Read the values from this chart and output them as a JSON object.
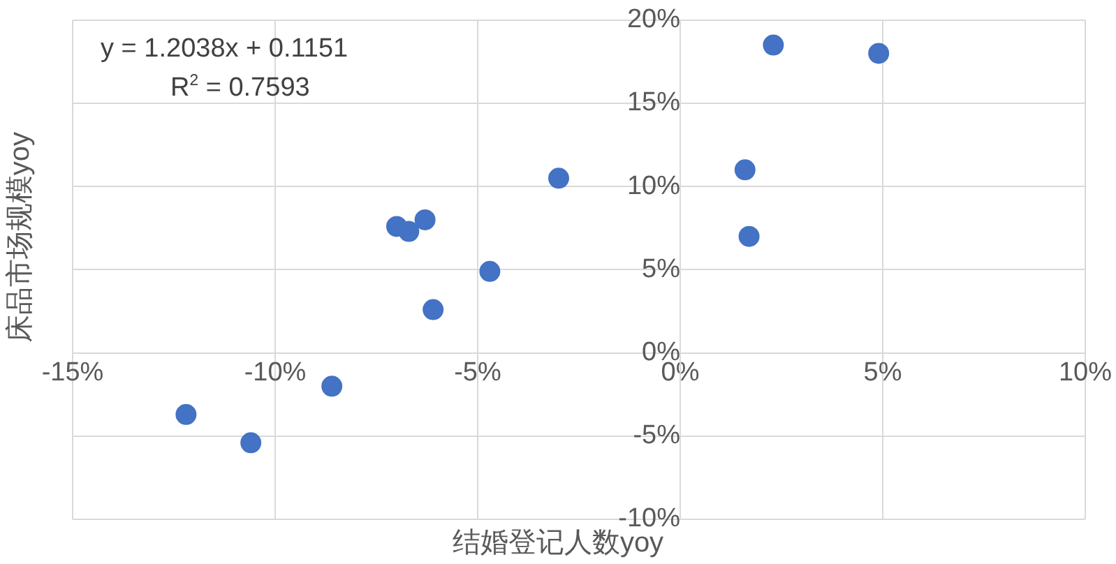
{
  "chart_data": {
    "type": "scatter",
    "xlabel": "结婚登记人数yoy",
    "ylabel": "床品市场规模yoy",
    "annotations": [
      "y = 1.2038x + 0.1151",
      "R$^{2}$ = 0.7593"
    ],
    "x": [
      -12.2,
      -10.6,
      -8.6,
      -7.0,
      -6.7,
      -6.3,
      -6.1,
      -4.7,
      -3.0,
      1.6,
      1.7,
      2.3,
      4.9
    ],
    "series": [
      {
        "color": "#4472c4",
        "values": [
          -3.7,
          -5.4,
          -2.0,
          7.6,
          7.3,
          8.0,
          2.6,
          4.9,
          10.5,
          11.0,
          7.0,
          18.5,
          18.0
        ]
      }
    ],
    "xlim": [
      -15,
      10
    ],
    "xticks": [
      {
        "value": -15,
        "label": "-15%"
      },
      {
        "value": -10,
        "label": "-10%"
      },
      {
        "value": -5,
        "label": "-5%"
      },
      {
        "value": 0,
        "label": "0%"
      },
      {
        "value": 5,
        "label": "5%"
      },
      {
        "value": 10,
        "label": "10%"
      }
    ],
    "ylim": [
      -10,
      20
    ],
    "yticks": [
      {
        "value": -10,
        "label": "-10%"
      },
      {
        "value": -5,
        "label": "-5%"
      },
      {
        "value": 0,
        "label": "0%"
      },
      {
        "value": 5,
        "label": "5%"
      },
      {
        "value": 10,
        "label": "10%"
      },
      {
        "value": 15,
        "label": "15%"
      },
      {
        "value": 20,
        "label": "20%"
      }
    ],
    "grid": true,
    "legend": false,
    "marker": "circle"
  }
}
